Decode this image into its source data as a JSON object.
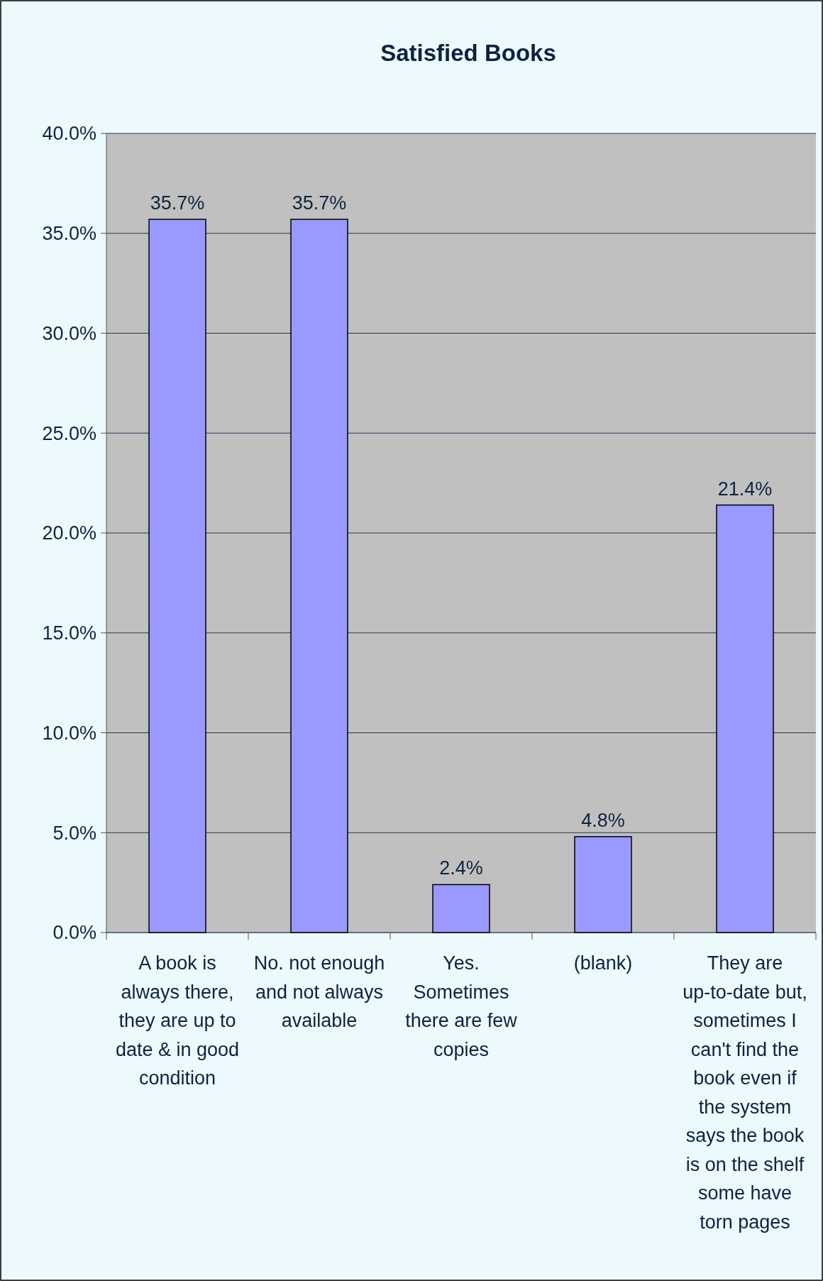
{
  "chart_data": {
    "type": "bar",
    "title": "Satisfied Books",
    "categories": [
      "A book is always there, they are up to date & in good condition",
      "No. not enough and not always available",
      "Yes. Sometimes there are few copies",
      "(blank)",
      "They are up-to-date but, sometimes I can't find the book even if the system says the book is on the shelf some have torn pages"
    ],
    "values": [
      35.7,
      35.7,
      2.4,
      4.8,
      21.4
    ],
    "value_labels": [
      "35.7%",
      "35.7%",
      "2.4%",
      "4.8%",
      "21.4%"
    ],
    "color": "#9999ff",
    "ylim": [
      0,
      40
    ],
    "yticks": [
      {
        "value": 0,
        "label": "0.0%"
      },
      {
        "value": 5,
        "label": "5.0%"
      },
      {
        "value": 10,
        "label": "10.0%"
      },
      {
        "value": 15,
        "label": "15.0%"
      },
      {
        "value": 20,
        "label": "20.0%"
      },
      {
        "value": 25,
        "label": "25.0%"
      },
      {
        "value": 30,
        "label": "30.0%"
      },
      {
        "value": 35,
        "label": "35.0%"
      },
      {
        "value": 40,
        "label": "40.0%"
      }
    ],
    "grid": "y"
  }
}
